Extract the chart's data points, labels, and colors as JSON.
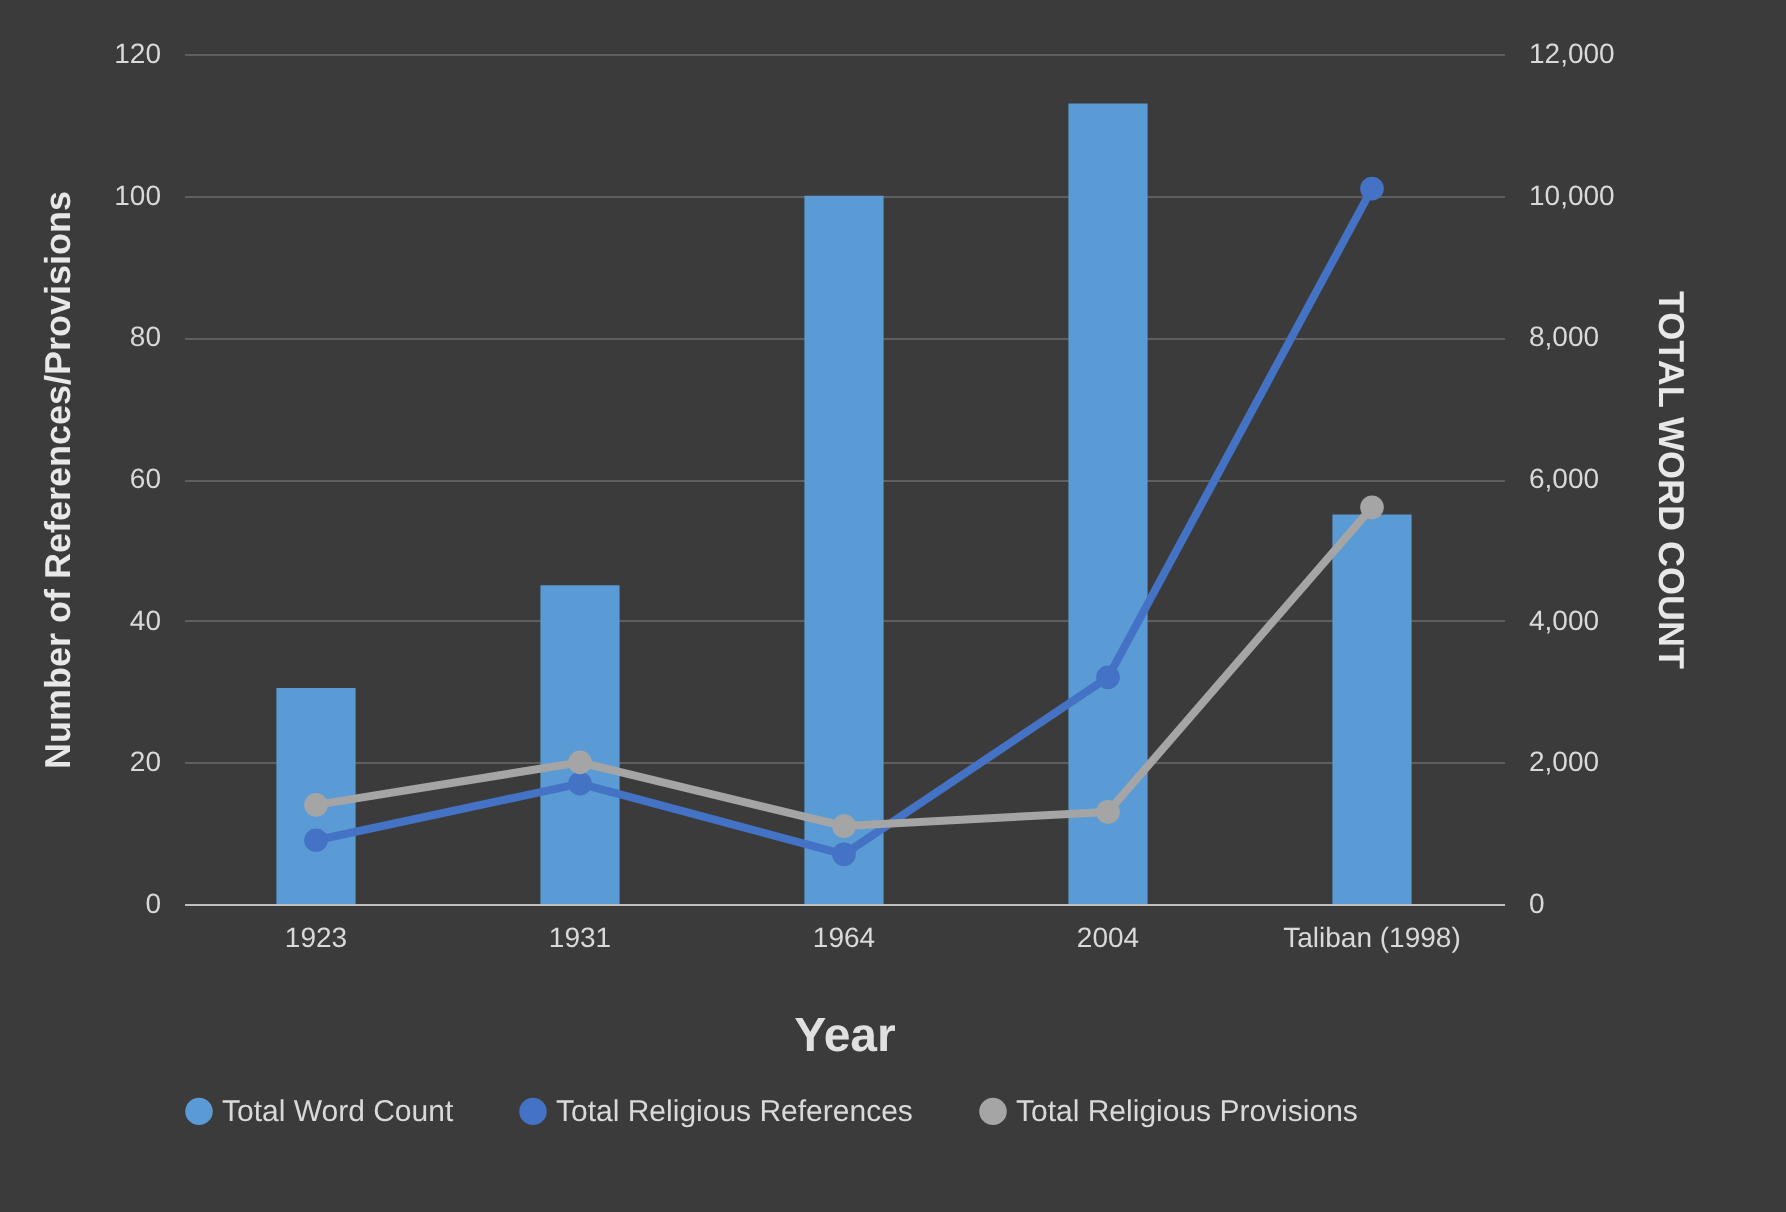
{
  "chart_data": {
    "type": "bar",
    "xlabel": "Year",
    "ylabel": "Number of References/Provisions",
    "y2label": "TOTAL WORD COUNT",
    "categories": [
      "1923",
      "1931",
      "1964",
      "2004",
      "Taliban (1998)"
    ],
    "series": [
      {
        "name": "Total Word Count",
        "axis": "y2",
        "color": "#5b9bd5",
        "values": [
          3050,
          4500,
          10000,
          11300,
          5500
        ]
      },
      {
        "name": "Total Religious References",
        "type": "line",
        "color": "#4472c4",
        "values": [
          9,
          17,
          7,
          32,
          101
        ]
      },
      {
        "name": "Total Religious Provisions",
        "type": "line",
        "color": "#a5a5a5",
        "values": [
          14,
          20,
          11,
          13,
          56
        ]
      }
    ],
    "ylim": [
      0,
      120
    ],
    "yticks": [
      0,
      20,
      40,
      60,
      80,
      100,
      120
    ],
    "y2lim": [
      0,
      12000
    ],
    "y2ticks": [
      0,
      {
        "value": 2000,
        "label": "2,000"
      },
      {
        "value": 4000,
        "label": "4,000"
      },
      {
        "value": 6000,
        "label": "6,000"
      },
      {
        "value": 8000,
        "label": "8,000"
      },
      {
        "value": 10000,
        "label": "10,000"
      },
      {
        "value": 12000,
        "label": "12,000"
      }
    ],
    "grid": "y",
    "legend": "bottom",
    "marker": "circle",
    "line_style": "solid"
  }
}
